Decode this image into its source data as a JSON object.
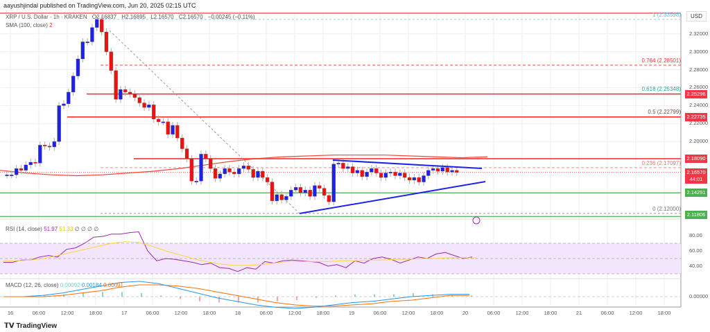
{
  "publisher": "aayushjindal published on TradingView.com, Jun 20, 2025 02:15 UTC",
  "symbol": {
    "name": "XRP / U.S. Dollar · 1h · KRAKEN",
    "open": "O2.16837",
    "high": "H2.16895",
    "low": "L2.16570",
    "close": "C2.16570",
    "change": "−0.00245 (−0.11%)"
  },
  "sma_legend": {
    "label": "SMA (100, close)",
    "value": "2"
  },
  "rsi_legend": {
    "label": "RSI (14, close)",
    "v1": "51.97",
    "v2": "51.33",
    "v3": "∅ ∅ ∅ ∅"
  },
  "macd_legend": {
    "label": "MACD (12, 26, close)",
    "hist": "0.00092",
    "macd": "0.00184",
    "signal": "0.00091"
  },
  "currency": "USD",
  "price_axis": [
    "2.32000",
    "2.30000",
    "2.28000",
    "2.26000",
    "2.24000",
    "2.22000",
    "2.20000"
  ],
  "rsi_axis": [
    "80.00",
    "60.00",
    "40.00"
  ],
  "macd_axis": "0.00000",
  "price_tags": [
    {
      "value": "2.25296",
      "color": "#f23645",
      "price": 2.25296
    },
    {
      "value": "2.22735",
      "color": "#f23645",
      "price": 2.22735
    },
    {
      "value": "2.18090",
      "color": "#f23645",
      "price": 2.1809
    },
    {
      "value": "2.16570",
      "sub": "44:01",
      "color": "#f23645",
      "price": 2.1657
    },
    {
      "value": "2.14291",
      "color": "#4caf50",
      "price": 2.14291
    },
    {
      "value": "2.11806",
      "color": "#4caf50",
      "price": 2.11806
    }
  ],
  "fib_levels": [
    {
      "label": "1 (2.33598)",
      "price": 2.33598,
      "color": "#64b5f6"
    },
    {
      "label": "0.764 (2.28501)",
      "price": 2.28501,
      "color": "#e53935"
    },
    {
      "label": "0.618 (2.25348)",
      "price": 2.25348,
      "color": "#26a69a"
    },
    {
      "label": "0.5 (2.22799)",
      "price": 2.22799,
      "color": "#6d4c41"
    },
    {
      "label": "0.236 (2.17097)",
      "price": 2.17097,
      "color": "#e57373"
    },
    {
      "label": "0 (2.12000)",
      "price": 2.12,
      "color": "#777"
    }
  ],
  "time_axis": [
    "16",
    "06:00",
    "12:00",
    "18:00",
    "17",
    "06:00",
    "12:00",
    "18:00",
    "18",
    "06:00",
    "12:00",
    "18:00",
    "19",
    "06:00",
    "12:00",
    "18:00",
    "20",
    "06:00",
    "12:00",
    "18:00",
    "21",
    "06:00",
    "12:00",
    "18:00"
  ],
  "branding": "TradingView",
  "colors": {
    "up": "#1e22e8",
    "down": "#f01010",
    "sma": "#f44336",
    "rsi": "#9c27b0",
    "rsi_ma": "#fdd835",
    "macd": "#2196f3",
    "signal": "#ff6d00"
  },
  "chart_data": {
    "type": "candlestick",
    "title": "XRP / U.S. Dollar · 1h · KRAKEN",
    "ylim": [
      2.115,
      2.345
    ],
    "candles_oc": [
      [
        2.163,
        2.163
      ],
      [
        2.163,
        2.163
      ],
      [
        2.163,
        2.17
      ],
      [
        2.17,
        2.168
      ],
      [
        2.168,
        2.174
      ],
      [
        2.174,
        2.177
      ],
      [
        2.177,
        2.176
      ],
      [
        2.176,
        2.196
      ],
      [
        2.196,
        2.195
      ],
      [
        2.195,
        2.194
      ],
      [
        2.194,
        2.2
      ],
      [
        2.2,
        2.24
      ],
      [
        2.24,
        2.242
      ],
      [
        2.242,
        2.255
      ],
      [
        2.255,
        2.273
      ],
      [
        2.273,
        2.292
      ],
      [
        2.292,
        2.311
      ],
      [
        2.311,
        2.311
      ],
      [
        2.311,
        2.327
      ],
      [
        2.327,
        2.336
      ],
      [
        2.336,
        2.322
      ],
      [
        2.322,
        2.3
      ],
      [
        2.3,
        2.279
      ],
      [
        2.279,
        2.247
      ],
      [
        2.247,
        2.258
      ],
      [
        2.258,
        2.255
      ],
      [
        2.255,
        2.253
      ],
      [
        2.253,
        2.249
      ],
      [
        2.249,
        2.243
      ],
      [
        2.243,
        2.238
      ],
      [
        2.238,
        2.241
      ],
      [
        2.241,
        2.225
      ],
      [
        2.225,
        2.222
      ],
      [
        2.222,
        2.222
      ],
      [
        2.222,
        2.208
      ],
      [
        2.208,
        2.218
      ],
      [
        2.218,
        2.204
      ],
      [
        2.204,
        2.192
      ],
      [
        2.192,
        2.181
      ],
      [
        2.181,
        2.156
      ],
      [
        2.156,
        2.156
      ],
      [
        2.156,
        2.186
      ],
      [
        2.186,
        2.181
      ],
      [
        2.181,
        2.17
      ],
      [
        2.17,
        2.159
      ],
      [
        2.159,
        2.164
      ],
      [
        2.164,
        2.17
      ],
      [
        2.17,
        2.166
      ],
      [
        2.166,
        2.164
      ],
      [
        2.164,
        2.17
      ],
      [
        2.17,
        2.173
      ],
      [
        2.173,
        2.169
      ],
      [
        2.169,
        2.16
      ],
      [
        2.16,
        2.167
      ],
      [
        2.167,
        2.16
      ],
      [
        2.16,
        2.155
      ],
      [
        2.155,
        2.134
      ],
      [
        2.134,
        2.141
      ],
      [
        2.141,
        2.135
      ],
      [
        2.135,
        2.139
      ],
      [
        2.139,
        2.146
      ],
      [
        2.146,
        2.149
      ],
      [
        2.149,
        2.143
      ],
      [
        2.143,
        2.146
      ],
      [
        2.146,
        2.139
      ],
      [
        2.139,
        2.151
      ],
      [
        2.151,
        2.148
      ],
      [
        2.148,
        2.14
      ],
      [
        2.14,
        2.133
      ],
      [
        2.133,
        2.175
      ],
      [
        2.175,
        2.176
      ],
      [
        2.176,
        2.17
      ],
      [
        2.17,
        2.172
      ],
      [
        2.172,
        2.165
      ],
      [
        2.165,
        2.168
      ],
      [
        2.168,
        2.161
      ],
      [
        2.161,
        2.166
      ],
      [
        2.166,
        2.17
      ],
      [
        2.17,
        2.165
      ],
      [
        2.165,
        2.16
      ],
      [
        2.16,
        2.165
      ],
      [
        2.165,
        2.166
      ],
      [
        2.166,
        2.162
      ],
      [
        2.162,
        2.165
      ],
      [
        2.165,
        2.16
      ],
      [
        2.16,
        2.157
      ],
      [
        2.157,
        2.16
      ],
      [
        2.16,
        2.155
      ],
      [
        2.155,
        2.162
      ],
      [
        2.162,
        2.168
      ],
      [
        2.168,
        2.17
      ],
      [
        2.17,
        2.167
      ],
      [
        2.167,
        2.171
      ],
      [
        2.171,
        2.166
      ],
      [
        2.166,
        2.168
      ],
      [
        2.168,
        2.1657
      ]
    ],
    "sma100": [
      2.168,
      2.165,
      2.163,
      2.162,
      2.163,
      2.165,
      2.167,
      2.17,
      2.174,
      2.178,
      2.181,
      2.183,
      2.184,
      2.185,
      2.185,
      2.185,
      2.184,
      2.183,
      2.182,
      2.183
    ],
    "rsi": [
      45,
      45,
      48,
      48,
      52,
      54,
      52,
      62,
      64,
      70,
      78,
      79,
      82,
      82,
      84,
      85,
      60,
      47,
      50,
      49,
      47,
      45,
      42,
      44,
      38,
      37,
      33,
      38,
      36,
      46,
      44,
      47,
      48,
      47,
      46,
      45,
      40,
      42,
      38,
      47,
      44,
      50,
      52,
      49,
      44,
      48,
      52,
      50,
      56,
      58,
      54,
      50,
      52
    ],
    "rsi_ma": [
      47,
      47,
      48,
      50,
      54,
      58,
      62,
      66,
      70,
      72,
      71,
      66,
      60,
      55,
      50,
      46,
      43,
      41,
      41,
      42,
      44,
      46,
      46,
      46,
      46,
      47,
      47,
      48,
      48,
      49,
      49,
      50,
      50,
      51,
      51,
      51
    ],
    "macd": [
      0,
      0,
      0.001,
      0.003,
      0.006,
      0.009,
      0.012,
      0.013,
      0.011,
      0.007,
      0.003,
      -0.001,
      -0.004,
      -0.007,
      -0.009,
      -0.01,
      -0.009,
      -0.007,
      -0.005,
      -0.004,
      -0.002,
      0,
      0.001,
      0.002,
      0.002
    ],
    "signal": [
      0,
      0,
      0,
      0.001,
      0.003,
      0.005,
      0.008,
      0.01,
      0.01,
      0.009,
      0.007,
      0.004,
      0.001,
      -0.002,
      -0.005,
      -0.007,
      -0.008,
      -0.008,
      -0.007,
      -0.006,
      -0.004,
      -0.003,
      -0.001,
      0.001,
      0.001
    ]
  }
}
